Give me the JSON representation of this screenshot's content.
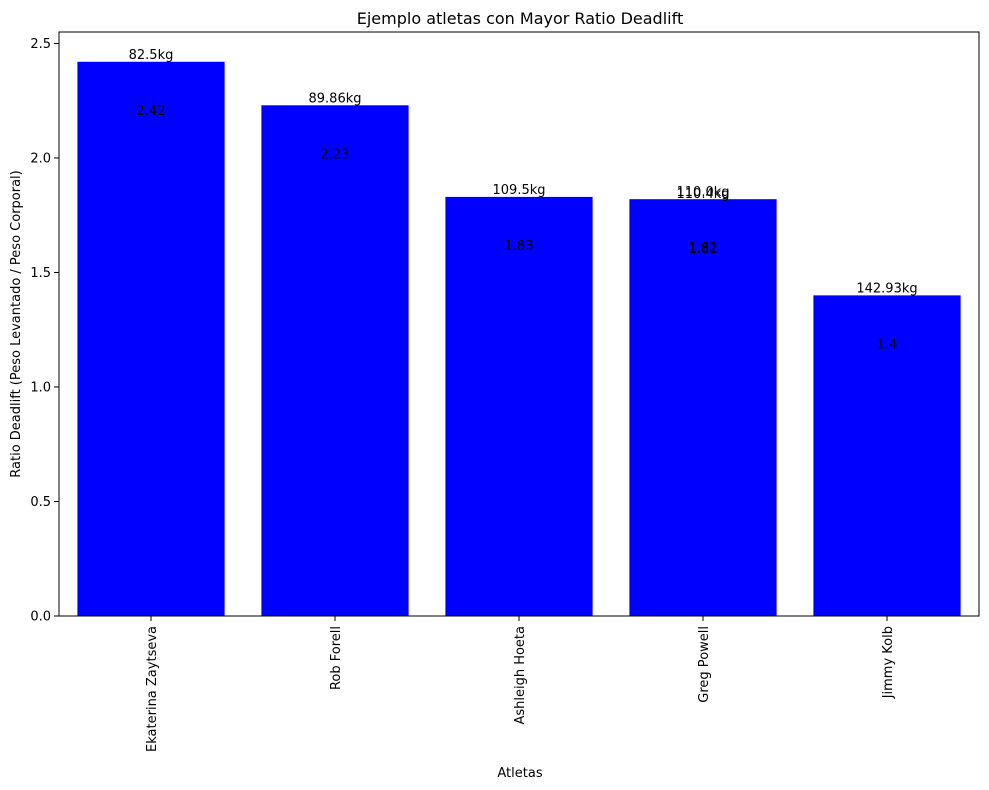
{
  "chart_data": {
    "type": "bar",
    "title": "Ejemplo atletas con Mayor Ratio Deadlift",
    "xlabel": "Atletas",
    "ylabel": "Ratio Deadlift (Peso Levantado / Peso Corporal)",
    "ylim": [
      0,
      2.55
    ],
    "yticks": [
      "0.0",
      "0.5",
      "1.0",
      "1.5",
      "2.0",
      "2.5"
    ],
    "bar_color": "#0000ff",
    "grid": false,
    "categories": [
      "Ekaterina Zaytseva",
      "Rob Forell",
      "Ashleigh Hoeta",
      "Greg Powell",
      "Jimmy Kolb"
    ],
    "bars": [
      {
        "category": "Ekaterina Zaytseva",
        "value": 2.42,
        "top_labels": [
          "82.5kg"
        ],
        "inner_labels": [
          "2.42"
        ]
      },
      {
        "category": "Rob Forell",
        "value": 2.23,
        "top_labels": [
          "89.86kg"
        ],
        "inner_labels": [
          "2.23"
        ]
      },
      {
        "category": "Ashleigh Hoeta",
        "value": 1.83,
        "top_labels": [
          "109.5kg"
        ],
        "inner_labels": [
          "1.83"
        ]
      },
      {
        "category": "Greg Powell",
        "value": 1.82,
        "top_labels": [
          "110.0kg",
          "110.4kg"
        ],
        "inner_labels": [
          "1.82",
          "1.81"
        ]
      },
      {
        "category": "Jimmy Kolb",
        "value": 1.4,
        "top_labels": [
          "142.93kg"
        ],
        "inner_labels": [
          "1.4"
        ]
      }
    ]
  }
}
